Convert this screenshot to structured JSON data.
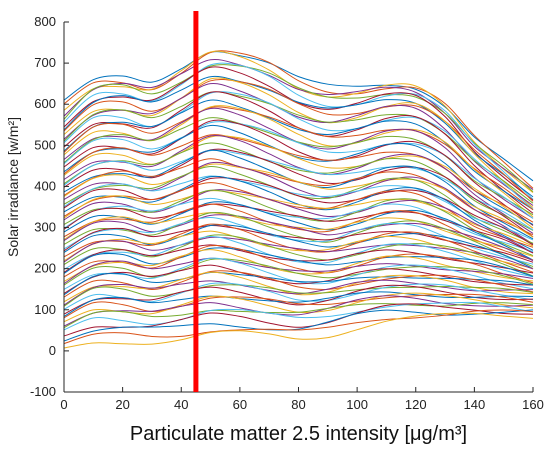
{
  "chart_data": {
    "type": "line",
    "title": "",
    "xlabel": "Particulate matter 2.5 intensity [μg/m³]",
    "ylabel": "Solar irradiance [w/m²]",
    "xlim": [
      0,
      160
    ],
    "ylim": [
      -100,
      800
    ],
    "x_ticks": [
      "0",
      "20",
      "40",
      "60",
      "80",
      "100",
      "120",
      "140",
      "160"
    ],
    "y_ticks": [
      "-100",
      "0",
      "100",
      "200",
      "300",
      "400",
      "500",
      "600",
      "700",
      "800"
    ],
    "grid": false,
    "legend": "none",
    "marker_line": {
      "x": 45,
      "color": "#ff0000"
    },
    "series_count": 80,
    "x": [
      0,
      10,
      20,
      30,
      40,
      50,
      60,
      70,
      80,
      90,
      100,
      110,
      120,
      130,
      140,
      150,
      160
    ],
    "series": [
      {
        "values": [
          610,
          655,
          660,
          650,
          690,
          735,
          725,
          700,
          660,
          640,
          640,
          650,
          645,
          600,
          520,
          460,
          405
        ]
      },
      {
        "values": [
          560,
          630,
          640,
          625,
          660,
          700,
          695,
          670,
          630,
          610,
          615,
          630,
          625,
          580,
          500,
          440,
          380
        ]
      },
      {
        "values": [
          530,
          590,
          600,
          585,
          620,
          660,
          650,
          625,
          590,
          570,
          580,
          600,
          600,
          555,
          480,
          420,
          360
        ]
      },
      {
        "values": [
          500,
          560,
          565,
          550,
          585,
          625,
          615,
          590,
          555,
          535,
          545,
          565,
          565,
          525,
          455,
          400,
          345
        ]
      },
      {
        "values": [
          470,
          525,
          530,
          515,
          550,
          585,
          575,
          550,
          520,
          500,
          510,
          530,
          530,
          495,
          430,
          380,
          330
        ]
      },
      {
        "values": [
          440,
          490,
          495,
          480,
          510,
          545,
          535,
          510,
          480,
          465,
          475,
          495,
          495,
          460,
          400,
          355,
          310
        ]
      },
      {
        "values": [
          410,
          455,
          460,
          445,
          475,
          505,
          495,
          470,
          445,
          430,
          440,
          460,
          460,
          430,
          375,
          335,
          290
        ]
      },
      {
        "values": [
          380,
          420,
          430,
          415,
          440,
          470,
          455,
          435,
          410,
          395,
          410,
          430,
          430,
          400,
          350,
          315,
          275
        ]
      },
      {
        "values": [
          350,
          390,
          395,
          380,
          405,
          430,
          420,
          400,
          375,
          365,
          380,
          400,
          400,
          370,
          325,
          295,
          260
        ]
      },
      {
        "values": [
          320,
          360,
          365,
          350,
          370,
          395,
          385,
          365,
          345,
          335,
          350,
          370,
          370,
          345,
          305,
          275,
          245
        ]
      },
      {
        "values": [
          290,
          330,
          335,
          320,
          340,
          360,
          350,
          330,
          315,
          305,
          320,
          340,
          340,
          315,
          285,
          260,
          230
        ]
      },
      {
        "values": [
          260,
          300,
          305,
          290,
          310,
          330,
          320,
          300,
          285,
          275,
          295,
          310,
          310,
          290,
          265,
          240,
          215
        ]
      },
      {
        "values": [
          230,
          270,
          275,
          260,
          280,
          300,
          290,
          270,
          255,
          250,
          265,
          280,
          280,
          265,
          245,
          225,
          200
        ]
      },
      {
        "values": [
          200,
          240,
          245,
          230,
          250,
          270,
          260,
          240,
          225,
          220,
          235,
          250,
          250,
          240,
          225,
          205,
          185
        ]
      },
      {
        "values": [
          170,
          210,
          215,
          200,
          220,
          240,
          230,
          210,
          195,
          190,
          205,
          220,
          220,
          210,
          200,
          185,
          170
        ]
      },
      {
        "values": [
          140,
          180,
          185,
          170,
          185,
          205,
          195,
          180,
          165,
          165,
          180,
          190,
          190,
          185,
          175,
          165,
          155
        ]
      },
      {
        "values": [
          110,
          150,
          150,
          140,
          155,
          170,
          165,
          150,
          135,
          140,
          155,
          165,
          165,
          160,
          150,
          145,
          140
        ]
      },
      {
        "values": [
          80,
          115,
          115,
          105,
          120,
          135,
          130,
          120,
          110,
          115,
          130,
          140,
          140,
          135,
          130,
          125,
          120
        ]
      },
      {
        "values": [
          50,
          80,
          80,
          75,
          85,
          100,
          95,
          85,
          80,
          90,
          105,
          115,
          115,
          110,
          110,
          105,
          100
        ]
      },
      {
        "values": [
          5,
          20,
          25,
          25,
          30,
          40,
          40,
          35,
          30,
          40,
          60,
          75,
          80,
          82,
          85,
          86,
          87
        ]
      }
    ]
  }
}
